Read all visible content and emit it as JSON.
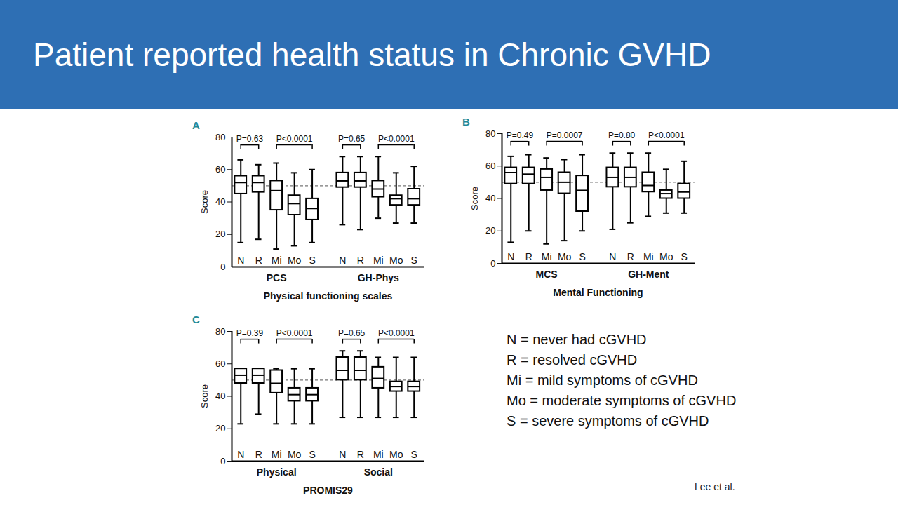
{
  "slide": {
    "title": "Patient reported health status in Chronic GVHD",
    "legend_text": [
      "N = never had cGVHD",
      "R = resolved cGVHD",
      "Mi = mild symptoms of cGVHD",
      "Mo = moderate symptoms of cGVHD",
      "S = severe symptoms of cGVHD"
    ],
    "citation": "Lee et al."
  },
  "chart_data": [
    {
      "type": "box",
      "panel": "A",
      "title": "Physical functioning scales",
      "y_label": "Score",
      "ylim": [
        0,
        80
      ],
      "yticks": [
        0,
        20,
        40,
        60,
        80
      ],
      "grid": false,
      "color": "#000000",
      "reference_line": {
        "value": 50,
        "line_style": "dashed"
      },
      "groups": [
        {
          "name": "PCS",
          "categories": [
            "N",
            "R",
            "Mi",
            "Mo",
            "S"
          ],
          "min": [
            15,
            17,
            11,
            13,
            15
          ],
          "q1": [
            45,
            46,
            35,
            32,
            29
          ],
          "median": [
            52,
            52,
            47,
            39,
            36
          ],
          "q3": [
            56,
            56,
            53,
            44,
            42
          ],
          "max": [
            66,
            63,
            64,
            58,
            60
          ],
          "comparisons": [
            {
              "from": "N",
              "to": "R",
              "label": "P=0.63"
            },
            {
              "from": "Mi",
              "to": "S",
              "label": "P<0.0001"
            }
          ]
        },
        {
          "name": "GH-Phys",
          "categories": [
            "N",
            "R",
            "Mi",
            "Mo",
            "S"
          ],
          "min": [
            26,
            23,
            30,
            27,
            27
          ],
          "q1": [
            49,
            49,
            43,
            38,
            38
          ],
          "median": [
            53,
            53,
            48,
            42,
            42
          ],
          "q3": [
            58,
            58,
            53,
            44,
            48
          ],
          "max": [
            68,
            68,
            68,
            58,
            62
          ],
          "comparisons": [
            {
              "from": "N",
              "to": "R",
              "label": "P=0.65"
            },
            {
              "from": "Mi",
              "to": "S",
              "label": "P<0.0001"
            }
          ]
        }
      ]
    },
    {
      "type": "box",
      "panel": "B",
      "title": "Mental Functioning",
      "y_label": "Score",
      "ylim": [
        0,
        80
      ],
      "yticks": [
        0,
        20,
        40,
        60,
        80
      ],
      "grid": false,
      "color": "#000000",
      "reference_line": {
        "value": 50,
        "line_style": "dashed"
      },
      "groups": [
        {
          "name": "MCS",
          "categories": [
            "N",
            "R",
            "Mi",
            "Mo",
            "S"
          ],
          "min": [
            13,
            20,
            12,
            14,
            20
          ],
          "q1": [
            49,
            49,
            45,
            43,
            32
          ],
          "median": [
            56,
            55,
            53,
            50,
            45
          ],
          "q3": [
            59,
            59,
            58,
            56,
            54
          ],
          "max": [
            66,
            67,
            65,
            64,
            67
          ],
          "comparisons": [
            {
              "from": "N",
              "to": "R",
              "label": "P=0.49"
            },
            {
              "from": "Mi",
              "to": "S",
              "label": "P=0.0007"
            }
          ]
        },
        {
          "name": "GH-Ment",
          "categories": [
            "N",
            "R",
            "Mi",
            "Mo",
            "S"
          ],
          "min": [
            21,
            25,
            29,
            31,
            31
          ],
          "q1": [
            47,
            47,
            44,
            40,
            40
          ],
          "median": [
            53,
            53,
            48,
            43,
            44
          ],
          "q3": [
            59,
            59,
            56,
            45,
            49
          ],
          "max": [
            68,
            68,
            68,
            58,
            63
          ],
          "comparisons": [
            {
              "from": "N",
              "to": "R",
              "label": "P=0.80"
            },
            {
              "from": "Mi",
              "to": "S",
              "label": "P<0.0001"
            }
          ]
        }
      ]
    },
    {
      "type": "box",
      "panel": "C",
      "title": "PROMIS29",
      "y_label": "Score",
      "ylim": [
        0,
        80
      ],
      "yticks": [
        0,
        20,
        40,
        60,
        80
      ],
      "grid": false,
      "color": "#000000",
      "reference_line": {
        "value": 50,
        "line_style": "dashed"
      },
      "groups": [
        {
          "name": "Physical",
          "categories": [
            "N",
            "R",
            "Mi",
            "Mo",
            "S"
          ],
          "min": [
            23,
            29,
            23,
            23,
            23
          ],
          "q1": [
            48,
            48,
            42,
            37,
            37
          ],
          "median": [
            53,
            53,
            48,
            41,
            41
          ],
          "q3": [
            57,
            57,
            56,
            45,
            45
          ],
          "max": [
            57,
            57,
            57,
            57,
            57
          ],
          "comparisons": [
            {
              "from": "N",
              "to": "R",
              "label": "P=0.39"
            },
            {
              "from": "Mi",
              "to": "S",
              "label": "P<0.0001"
            }
          ]
        },
        {
          "name": "Social",
          "categories": [
            "N",
            "R",
            "Mi",
            "Mo",
            "S"
          ],
          "min": [
            27,
            27,
            27,
            27,
            27
          ],
          "q1": [
            50,
            50,
            45,
            43,
            43
          ],
          "median": [
            56,
            56,
            51,
            46,
            46
          ],
          "q3": [
            64,
            64,
            58,
            49,
            49
          ],
          "max": [
            68,
            68,
            64,
            64,
            64
          ],
          "comparisons": [
            {
              "from": "N",
              "to": "R",
              "label": "P=0.65"
            },
            {
              "from": "Mi",
              "to": "S",
              "label": "P<0.0001"
            }
          ]
        }
      ]
    }
  ]
}
